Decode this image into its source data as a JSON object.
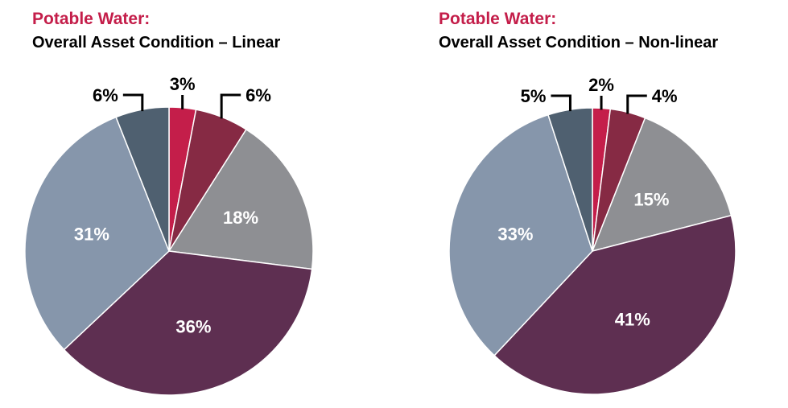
{
  "chart_data": [
    {
      "type": "pie",
      "title": "Potable Water:",
      "subtitle": "Overall Asset Condition – Linear",
      "values": [
        3,
        6,
        18,
        36,
        31,
        6
      ],
      "labels": [
        "3%",
        "6%",
        "18%",
        "36%",
        "31%",
        "6%"
      ],
      "colors": [
        "#c41e4a",
        "#862a44",
        "#8e8f93",
        "#5e2f51",
        "#8696ab",
        "#4f6070"
      ]
    },
    {
      "type": "pie",
      "title": "Potable Water:",
      "subtitle": "Overall Asset Condition – Non-linear",
      "values": [
        2,
        4,
        15,
        41,
        33,
        5
      ],
      "labels": [
        "2%",
        "4%",
        "15%",
        "41%",
        "33%",
        "5%"
      ],
      "colors": [
        "#c41e4a",
        "#862a44",
        "#8e8f93",
        "#5e2f51",
        "#8696ab",
        "#4f6070"
      ]
    }
  ]
}
